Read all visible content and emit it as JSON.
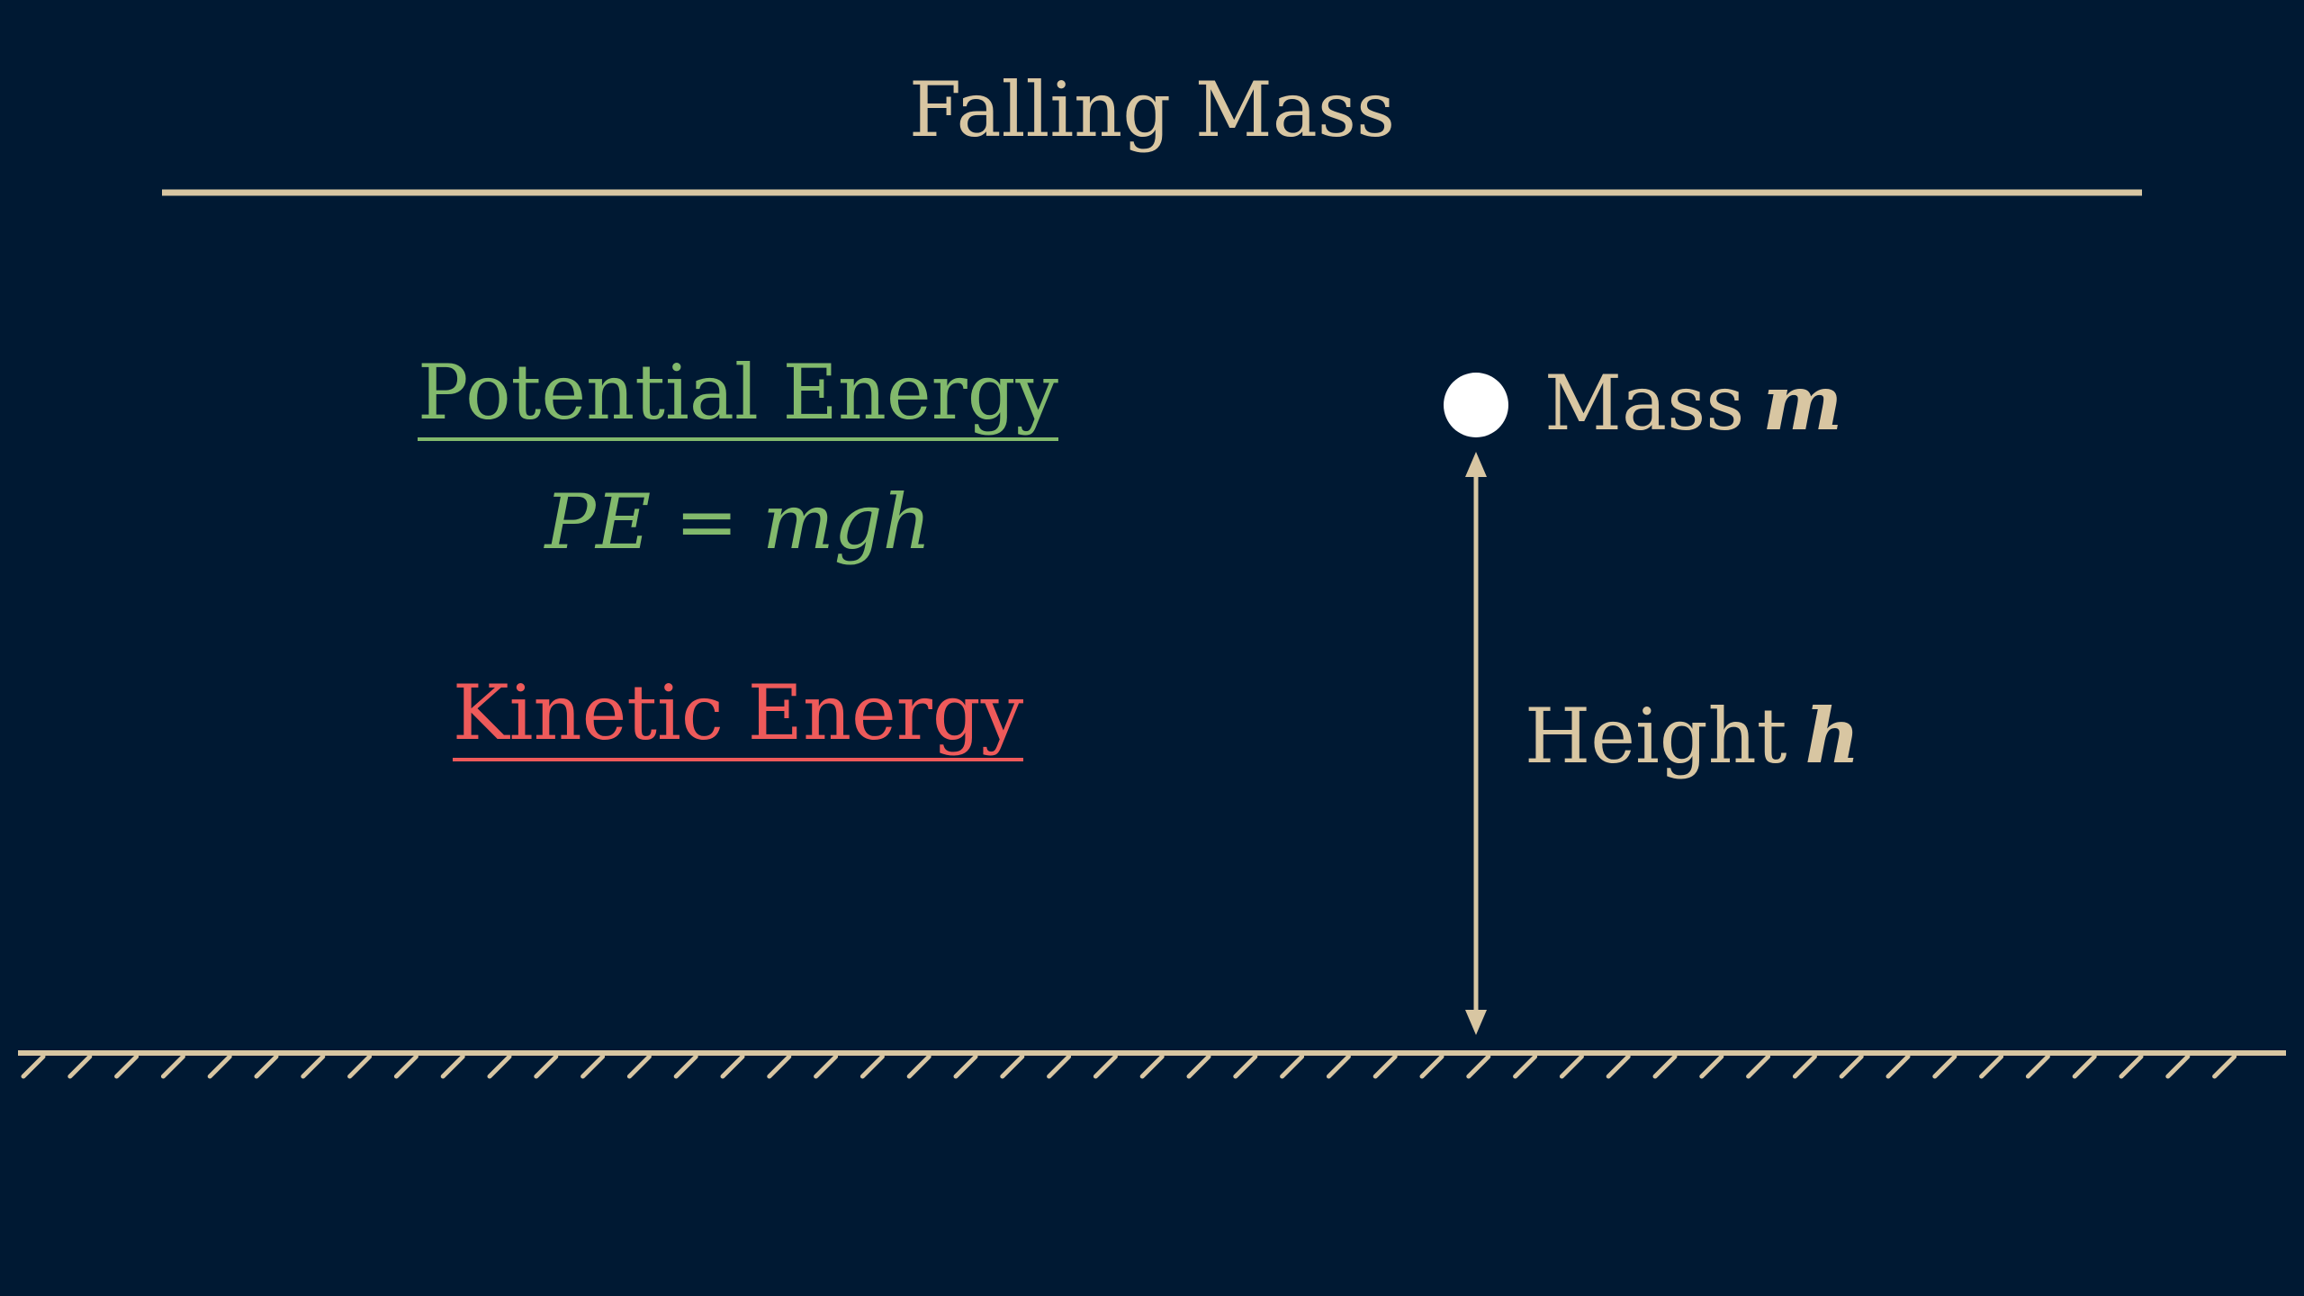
{
  "title": "Falling Mass",
  "potential_energy": {
    "heading": "Potential Energy",
    "formula": "PE = mgh"
  },
  "kinetic_energy": {
    "heading": "Kinetic Energy"
  },
  "mass": {
    "label": "Mass",
    "symbol": "m"
  },
  "height": {
    "label": "Height",
    "symbol": "h"
  },
  "colors": {
    "background": "#001933",
    "foreground": "#d8c6a2",
    "potential": "#82b96c",
    "kinetic": "#ee5a5a",
    "mass_ball": "#ffffff"
  }
}
